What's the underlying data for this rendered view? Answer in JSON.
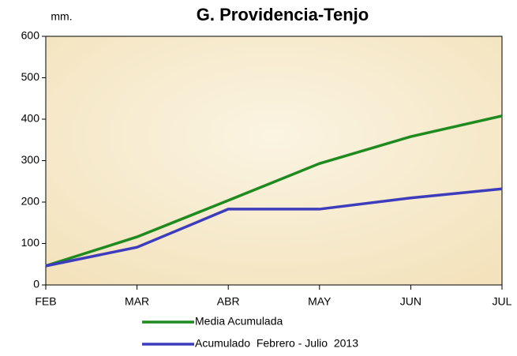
{
  "chart_data": {
    "type": "line",
    "title": "G. Providencia-Tenjo",
    "y_label": "mm.",
    "categories": [
      "FEB",
      "MAR",
      "ABR",
      "MAY",
      "JUN",
      "JUL"
    ],
    "series": [
      {
        "name": "Media Acumulada",
        "color": "#1f8a1f",
        "values": [
          46,
          116,
          204,
          293,
          358,
          408
        ]
      },
      {
        "name": "Acumulado  Febrero - Julio  2013",
        "color": "#3c3cbc",
        "values": [
          46,
          91,
          183,
          183,
          210,
          232
        ]
      }
    ],
    "ylim": [
      0,
      600
    ],
    "yticks": [
      0,
      100,
      200,
      300,
      400,
      500,
      600
    ],
    "grid": false,
    "plot_background": "#f6e9c9",
    "legend": "bottom"
  }
}
